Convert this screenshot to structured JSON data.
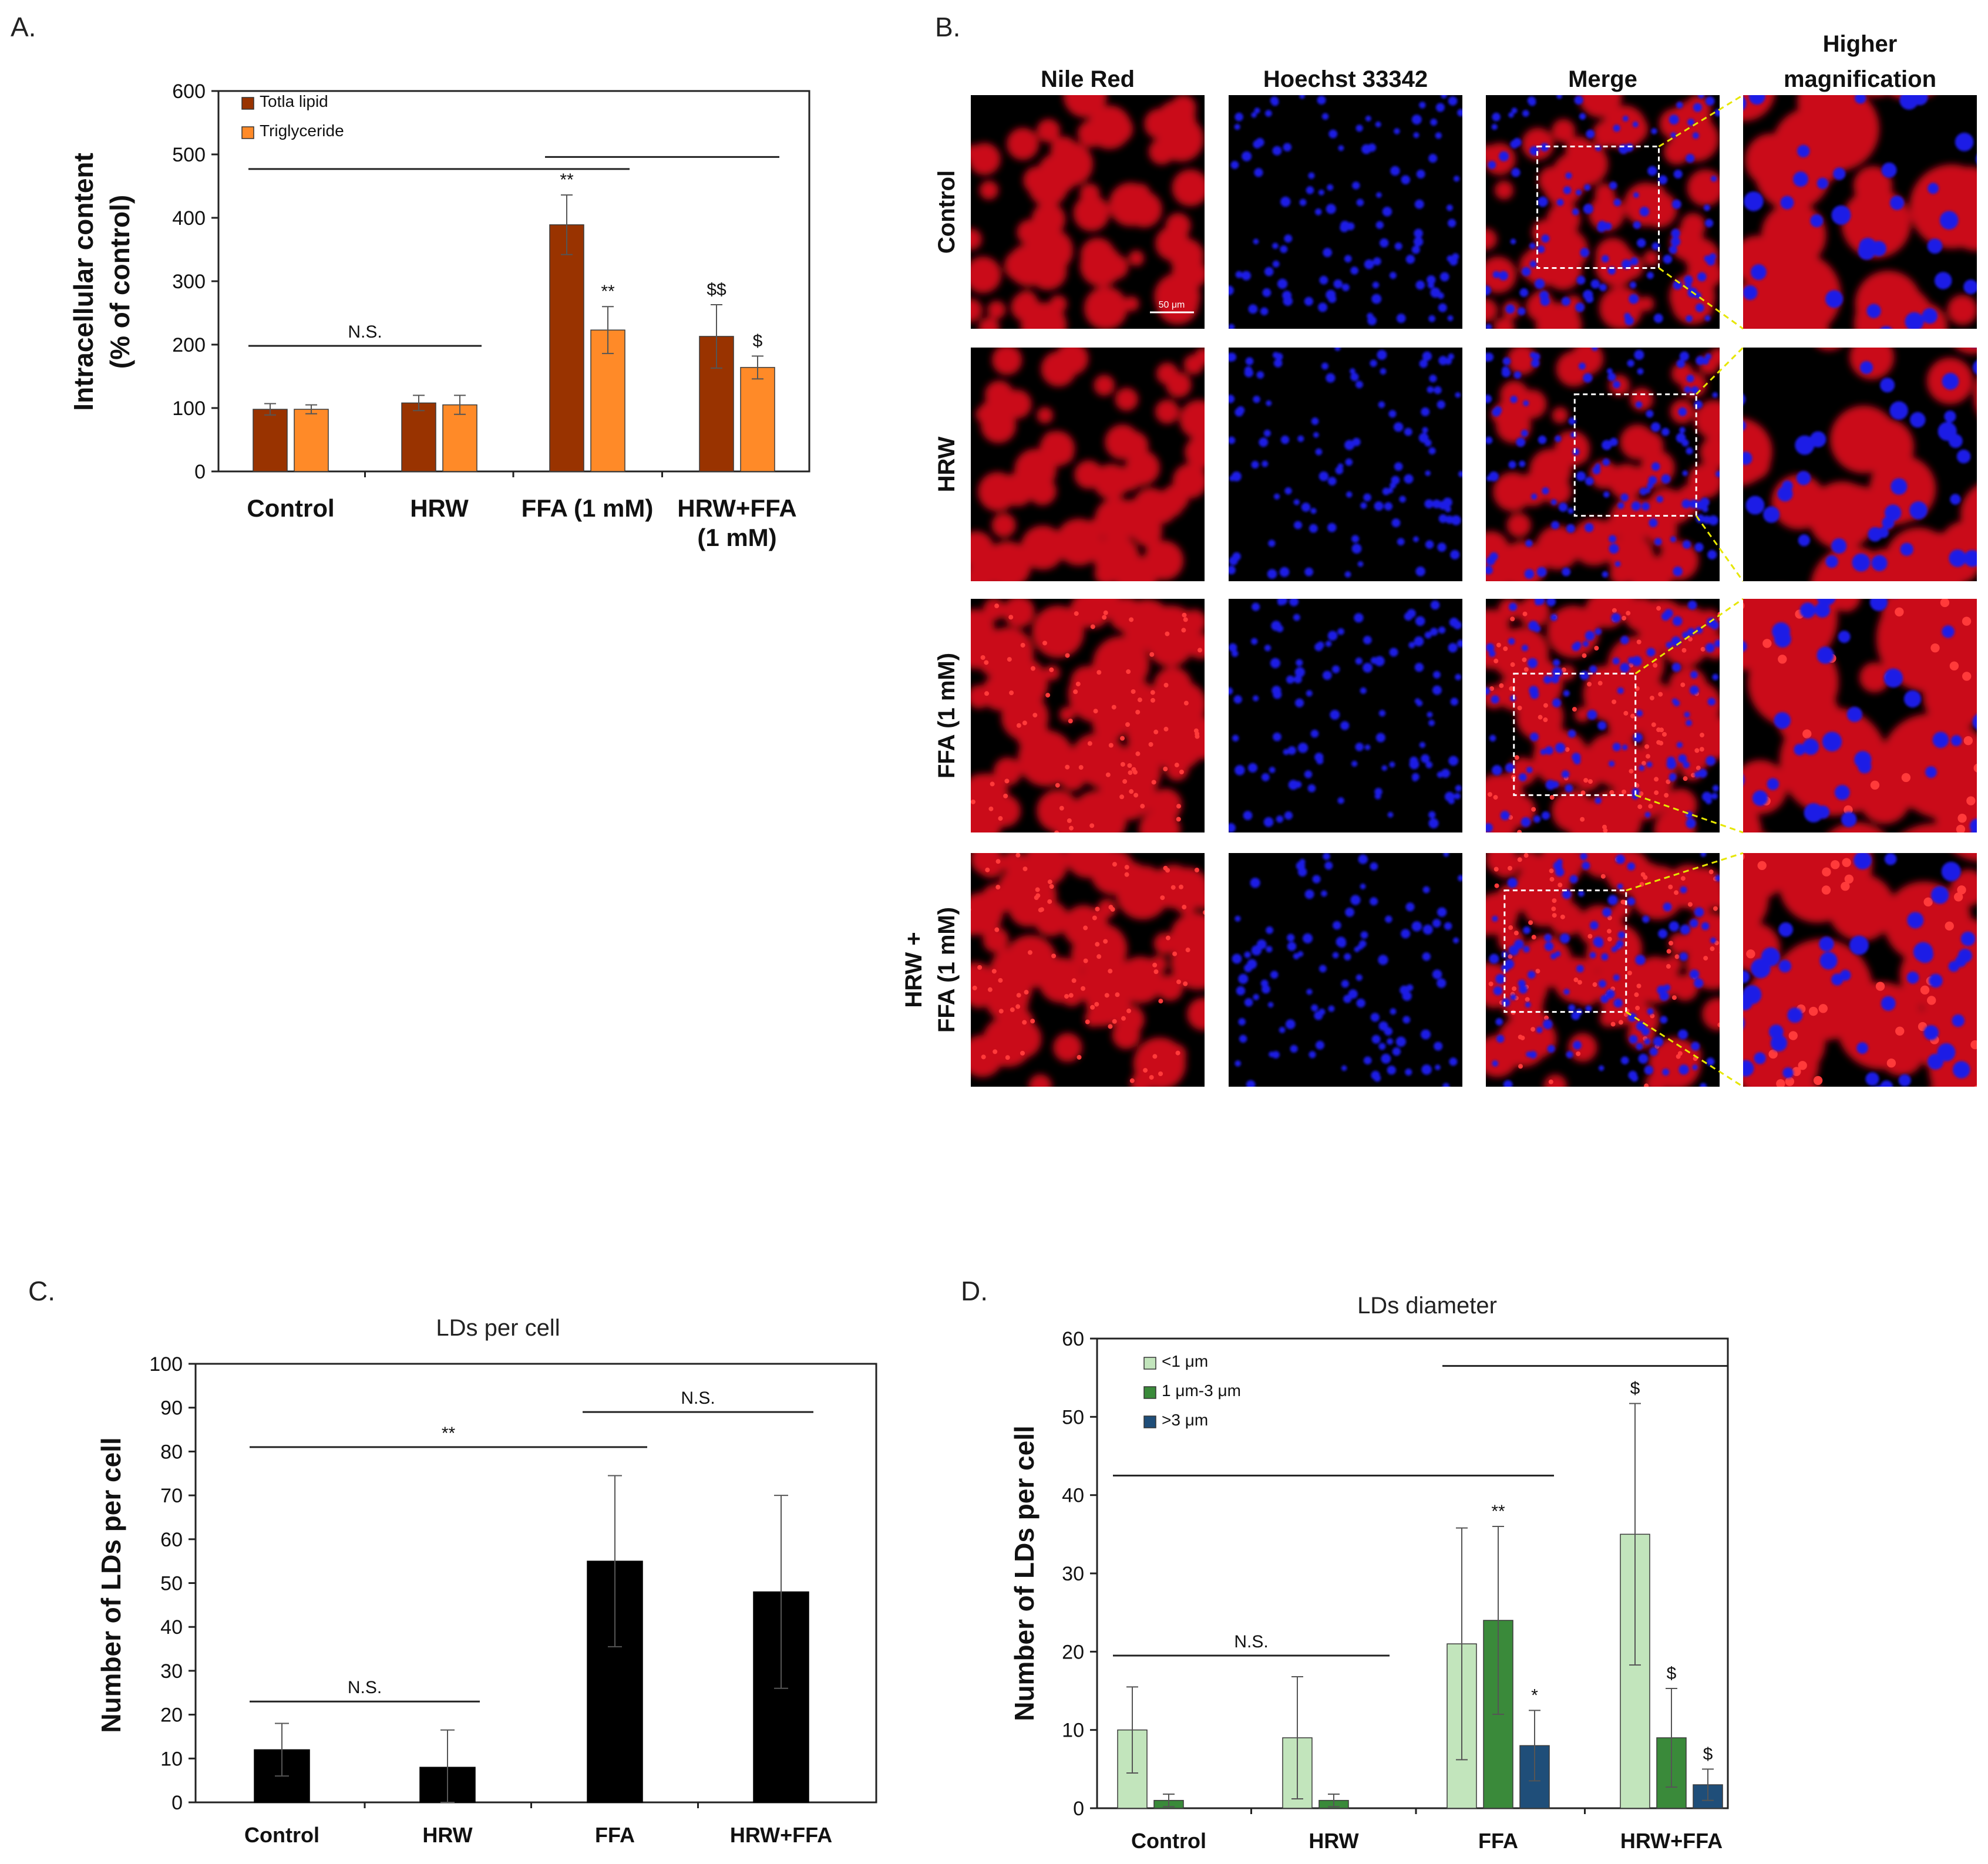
{
  "panel_labels": {
    "a": "A.",
    "b": "B.",
    "c": "C.",
    "d": "D."
  },
  "chart_data": [
    {
      "id": "A",
      "type": "bar",
      "title": "",
      "ylabel": [
        "Intracellular content",
        "(% of control)"
      ],
      "ylim": [
        0,
        600
      ],
      "yticks": [
        0,
        100,
        200,
        300,
        400,
        500,
        600
      ],
      "categories": [
        [
          "Control"
        ],
        [
          "HRW"
        ],
        [
          "FFA (1 mM)"
        ],
        [
          "HRW+FFA",
          "(1 mM)"
        ]
      ],
      "legend_position": "top-left",
      "series": [
        {
          "name": "Totla lipid",
          "color": "#993300",
          "values": [
            98,
            108,
            389,
            213
          ],
          "errors": [
            9,
            12,
            47,
            50
          ],
          "annotations": [
            "",
            "",
            "**",
            "$$"
          ]
        },
        {
          "name": "Triglyceride",
          "color": "#FF8A28",
          "values": [
            98,
            105,
            223,
            164
          ],
          "errors": [
            7,
            15,
            37,
            18
          ],
          "annotations": [
            "",
            "",
            "**",
            "$"
          ]
        }
      ],
      "brackets": [
        {
          "from": 0,
          "to": 1,
          "y": 198,
          "label": "N.S."
        },
        {
          "from": 0,
          "to": 2,
          "y": 477,
          "label": ""
        },
        {
          "from": 2,
          "to": 3,
          "y": 496,
          "label": ""
        }
      ]
    },
    {
      "id": "C",
      "type": "bar",
      "title": "LDs per cell",
      "ylabel": [
        "Number of LDs per cell"
      ],
      "ylim": [
        0,
        100
      ],
      "yticks": [
        0,
        10,
        20,
        30,
        40,
        50,
        60,
        70,
        80,
        90,
        100
      ],
      "categories": [
        [
          "Control"
        ],
        [
          "HRW"
        ],
        [
          "FFA"
        ],
        [
          "HRW+FFA"
        ]
      ],
      "series": [
        {
          "name": "",
          "color": "#000000",
          "values": [
            12,
            8,
            55,
            48
          ],
          "errors": [
            6,
            8.5,
            19.5,
            22
          ],
          "annotations": [
            "",
            "",
            "",
            ""
          ]
        }
      ],
      "brackets": [
        {
          "from": 0,
          "to": 1,
          "y": 23,
          "label": "N.S."
        },
        {
          "from": 0,
          "to": 2,
          "y": 81,
          "label": "**"
        },
        {
          "from": 2,
          "to": 3,
          "y": 89,
          "label": "N.S."
        }
      ]
    },
    {
      "id": "D",
      "type": "bar",
      "title": "LDs diameter",
      "ylabel": [
        "Number of LDs per cell"
      ],
      "ylim": [
        0,
        60
      ],
      "yticks": [
        0,
        10,
        20,
        30,
        40,
        50,
        60
      ],
      "categories": [
        [
          "Control"
        ],
        [
          "HRW"
        ],
        [
          "FFA"
        ],
        [
          "HRW+FFA"
        ]
      ],
      "legend_position": "top-left",
      "series": [
        {
          "name": "<1 μm",
          "color": "#C2E5BC",
          "values": [
            10,
            9,
            21,
            35
          ],
          "errors": [
            5.5,
            7.8,
            14.8,
            16.7
          ],
          "annotations": [
            "",
            "",
            "",
            "$"
          ]
        },
        {
          "name": "1 μm-3 μm",
          "color": "#3A8A3A",
          "values": [
            1,
            1,
            24,
            9
          ],
          "errors": [
            0.8,
            0.8,
            12,
            6.3
          ],
          "annotations": [
            "",
            "",
            "**",
            "$"
          ]
        },
        {
          "name": ">3 μm",
          "color": "#1F4E79",
          "values": [
            0,
            0,
            8,
            3
          ],
          "errors": [
            0,
            0,
            4.5,
            2
          ],
          "annotations": [
            "",
            "",
            "*",
            "$"
          ]
        }
      ],
      "brackets": [
        {
          "from": 0,
          "to": 1,
          "y": 19.5,
          "label": "N.S."
        },
        {
          "from": 0,
          "to": 2,
          "y": 42.5,
          "label": ""
        },
        {
          "from": 2,
          "to": 3,
          "y": 56.5,
          "label": ""
        }
      ]
    }
  ],
  "micrographs": {
    "columns": [
      "Nile Red",
      "Hoechst 33342",
      "Merge",
      [
        "Higher",
        "magnification"
      ]
    ],
    "rows": [
      [
        "Control"
      ],
      [
        "HRW"
      ],
      [
        "FFA (1 mM)"
      ],
      [
        "HRW +",
        "FFA (1 mM)"
      ]
    ],
    "scale_bar": "50 μm",
    "colors": {
      "lipid": "#E0101A",
      "nuclei": "#1A1AE6",
      "zoom_box": "#FFFFFF",
      "zoom_lines": "#E6E600"
    }
  }
}
